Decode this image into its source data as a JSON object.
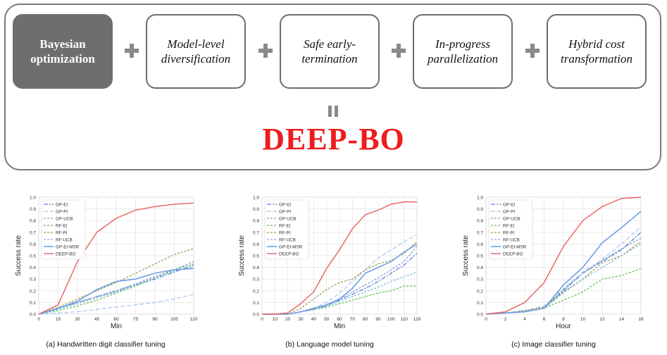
{
  "banner": {
    "components": [
      "Bayesian optimization",
      "Model-level diversification",
      "Safe early-termination",
      "In-progress parallelization",
      "Hybrid cost transformation"
    ],
    "result_title": "DEEP-BO",
    "colors": {
      "accent": "#ee1c1c",
      "box_dark": "#6e6e6e",
      "border": "#7a7a7a"
    }
  },
  "legend_series": [
    "GP-EI",
    "GP-PI",
    "GP-UCB",
    "RF-EI",
    "RF-PI",
    "RF-UCB",
    "GP-EI-MSR",
    "DEEP-BO"
  ],
  "series_styles": {
    "GP-EI": {
      "color": "#4a7fd0",
      "dash": "6,2,2,2",
      "width": 1.2
    },
    "GP-PI": {
      "color": "#a9c4ee",
      "dash": "6,3",
      "width": 1.2
    },
    "GP-UCB": {
      "color": "#7f9bd3",
      "dash": "3,2",
      "width": 1.2
    },
    "RF-EI": {
      "color": "#5cbf4e",
      "dash": "3,2",
      "width": 1.2
    },
    "RF-PI": {
      "color": "#9a9a4a",
      "dash": "3,2",
      "width": 1.2
    },
    "RF-UCB": {
      "color": "#7fb6d8",
      "dash": "3,2",
      "width": 1.2
    },
    "GP-EI-MSR": {
      "color": "#6f9fe6",
      "dash": "",
      "width": 1.6
    },
    "DEEP-BO": {
      "color": "#e8605e",
      "dash": "",
      "width": 1.4
    }
  },
  "chart_data": [
    {
      "type": "line",
      "caption": "(a) Handwritten digit classifier tuning",
      "xlabel": "Min",
      "ylabel": "Success rate",
      "xlim": [
        0,
        120
      ],
      "ylim": [
        0,
        1.0
      ],
      "xticks": [
        0,
        15,
        30,
        45,
        60,
        75,
        90,
        105,
        120
      ],
      "yticks": [
        0,
        0.1,
        0.2,
        0.3,
        0.4,
        0.5,
        0.6,
        0.7,
        0.8,
        0.9,
        1.0
      ],
      "grid": true,
      "legend": "top-left",
      "x": [
        0,
        15,
        30,
        45,
        60,
        75,
        90,
        105,
        120
      ],
      "series": [
        {
          "name": "GP-EI",
          "values": [
            0,
            0.05,
            0.1,
            0.15,
            0.2,
            0.25,
            0.3,
            0.36,
            0.42
          ]
        },
        {
          "name": "GP-PI",
          "values": [
            0,
            0.01,
            0.02,
            0.04,
            0.06,
            0.08,
            0.1,
            0.13,
            0.17
          ]
        },
        {
          "name": "GP-UCB",
          "values": [
            0,
            0.05,
            0.1,
            0.15,
            0.2,
            0.26,
            0.32,
            0.38,
            0.45
          ]
        },
        {
          "name": "RF-EI",
          "values": [
            0,
            0.03,
            0.07,
            0.12,
            0.18,
            0.24,
            0.31,
            0.38,
            0.43
          ]
        },
        {
          "name": "RF-PI",
          "values": [
            0,
            0.06,
            0.13,
            0.2,
            0.27,
            0.35,
            0.43,
            0.51,
            0.56
          ]
        },
        {
          "name": "RF-UCB",
          "values": [
            0,
            0.04,
            0.09,
            0.14,
            0.19,
            0.25,
            0.31,
            0.37,
            0.4
          ]
        },
        {
          "name": "GP-EI-MSR",
          "values": [
            0,
            0.05,
            0.11,
            0.21,
            0.28,
            0.3,
            0.35,
            0.38,
            0.39
          ]
        },
        {
          "name": "DEEP-BO",
          "values": [
            0,
            0.08,
            0.45,
            0.7,
            0.82,
            0.89,
            0.92,
            0.94,
            0.95
          ]
        }
      ]
    },
    {
      "type": "line",
      "caption": "(b) Language model tuning",
      "xlabel": "Min",
      "ylabel": "Success rate",
      "xlim": [
        0,
        120
      ],
      "ylim": [
        0,
        1.0
      ],
      "xticks": [
        0,
        10,
        20,
        30,
        40,
        50,
        60,
        70,
        80,
        90,
        100,
        110,
        120
      ],
      "yticks": [
        0,
        0.1,
        0.2,
        0.3,
        0.4,
        0.5,
        0.6,
        0.7,
        0.8,
        0.9,
        1.0
      ],
      "grid": true,
      "legend": "top-left",
      "x": [
        0,
        10,
        20,
        30,
        40,
        50,
        60,
        70,
        80,
        90,
        100,
        110,
        120
      ],
      "series": [
        {
          "name": "GP-EI",
          "values": [
            0,
            0,
            0,
            0.02,
            0.04,
            0.07,
            0.12,
            0.17,
            0.22,
            0.28,
            0.35,
            0.42,
            0.52
          ]
        },
        {
          "name": "GP-PI",
          "values": [
            0,
            0,
            0,
            0.02,
            0.05,
            0.1,
            0.18,
            0.28,
            0.38,
            0.48,
            0.55,
            0.62,
            0.68
          ]
        },
        {
          "name": "GP-UCB",
          "values": [
            0,
            0,
            0,
            0.02,
            0.04,
            0.08,
            0.13,
            0.19,
            0.25,
            0.31,
            0.38,
            0.45,
            0.58
          ]
        },
        {
          "name": "RF-EI",
          "values": [
            0,
            0,
            0,
            0.02,
            0.04,
            0.06,
            0.09,
            0.12,
            0.15,
            0.18,
            0.2,
            0.24,
            0.24
          ]
        },
        {
          "name": "RF-PI",
          "values": [
            0,
            0,
            0,
            0.05,
            0.13,
            0.21,
            0.27,
            0.3,
            0.38,
            0.43,
            0.46,
            0.52,
            0.62
          ]
        },
        {
          "name": "RF-UCB",
          "values": [
            0,
            0,
            0,
            0.02,
            0.04,
            0.07,
            0.11,
            0.15,
            0.19,
            0.23,
            0.28,
            0.32,
            0.36
          ]
        },
        {
          "name": "GP-EI-MSR",
          "values": [
            0,
            0,
            0,
            0.02,
            0.05,
            0.08,
            0.13,
            0.22,
            0.35,
            0.4,
            0.45,
            0.53,
            0.6
          ]
        },
        {
          "name": "DEEP-BO",
          "values": [
            0,
            0,
            0.01,
            0.09,
            0.19,
            0.39,
            0.55,
            0.73,
            0.85,
            0.89,
            0.94,
            0.96,
            0.96
          ]
        }
      ]
    },
    {
      "type": "line",
      "caption": "(c) Image classifier tuning",
      "xlabel": "Hour",
      "ylabel": "Success rate",
      "xlim": [
        0,
        16
      ],
      "ylim": [
        0,
        1.0
      ],
      "xticks": [
        0,
        2,
        4,
        6,
        8,
        10,
        12,
        14,
        16
      ],
      "yticks": [
        0,
        0.1,
        0.2,
        0.3,
        0.4,
        0.5,
        0.6,
        0.7,
        0.8,
        0.9,
        1.0
      ],
      "grid": true,
      "legend": "top-left",
      "x": [
        0,
        2,
        4,
        6,
        8,
        10,
        12,
        14,
        16
      ],
      "series": [
        {
          "name": "GP-EI",
          "values": [
            0,
            0.01,
            0.02,
            0.05,
            0.2,
            0.35,
            0.45,
            0.55,
            0.7
          ]
        },
        {
          "name": "GP-PI",
          "values": [
            0,
            0.01,
            0.03,
            0.07,
            0.22,
            0.36,
            0.47,
            0.6,
            0.75
          ]
        },
        {
          "name": "GP-UCB",
          "values": [
            0,
            0.01,
            0.03,
            0.06,
            0.21,
            0.35,
            0.46,
            0.56,
            0.65
          ]
        },
        {
          "name": "RF-EI",
          "values": [
            0,
            0.01,
            0.02,
            0.05,
            0.12,
            0.19,
            0.3,
            0.33,
            0.39
          ]
        },
        {
          "name": "RF-PI",
          "values": [
            0,
            0.01,
            0.03,
            0.06,
            0.19,
            0.3,
            0.44,
            0.5,
            0.62
          ]
        },
        {
          "name": "RF-UCB",
          "values": [
            0,
            0.01,
            0.02,
            0.05,
            0.18,
            0.3,
            0.4,
            0.5,
            0.6
          ]
        },
        {
          "name": "GP-EI-MSR",
          "values": [
            0,
            0.01,
            0.02,
            0.05,
            0.25,
            0.4,
            0.61,
            0.74,
            0.88
          ]
        },
        {
          "name": "DEEP-BO",
          "values": [
            0,
            0.02,
            0.1,
            0.27,
            0.58,
            0.8,
            0.92,
            0.99,
            1.0
          ]
        }
      ]
    }
  ]
}
